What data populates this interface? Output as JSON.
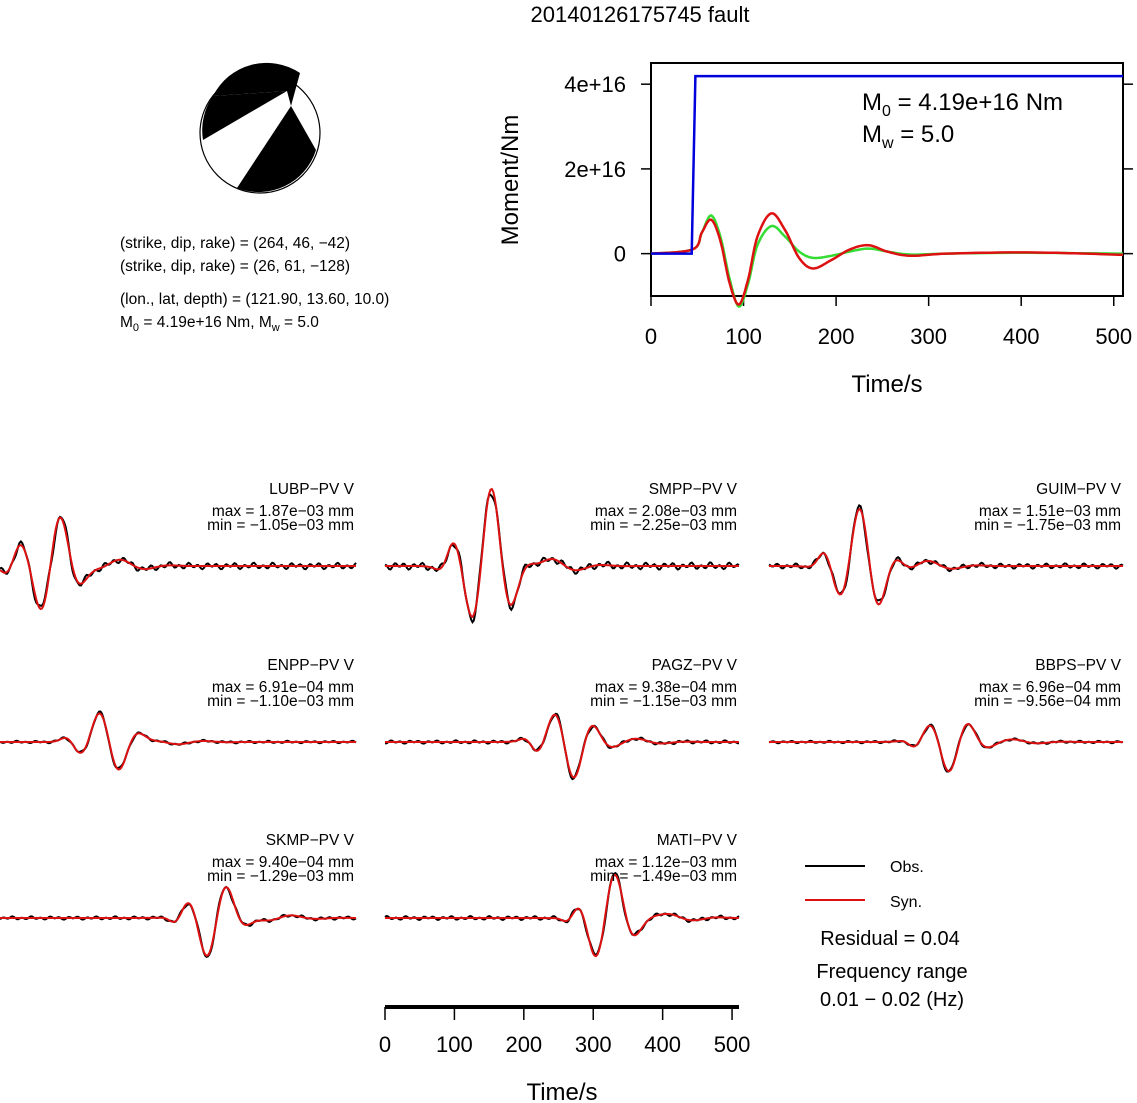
{
  "title": "20140126175745 fault",
  "mechanism": {
    "strike_dip_rake_1": "(strike, dip, rake) = (264, 46, −42)",
    "strike_dip_rake_2": "(strike, dip, rake) = (26, 61, −128)",
    "location": "(lon., lat, depth) = (121.90, 13.60, 10.0)",
    "m0_prefix": "M",
    "m0_sub": "0",
    "m0_mid": " = 4.19e+16 Nm, M",
    "mw_sub": "w",
    "mw_suffix": " = 5.0"
  },
  "moment_plot": {
    "ylabel": "Moment/Nm",
    "xlabel": "Time/s",
    "annotation_m0_prefix": "M",
    "annotation_m0_sub": "0",
    "annotation_m0_value": " = 4.19e+16 Nm",
    "annotation_mw_prefix": "M",
    "annotation_mw_sub": "w",
    "annotation_mw_value": " = 5.0",
    "colors": {
      "cumulative": "#0000dd",
      "rate_red": "#dd1111",
      "rate_green": "#33dd33"
    }
  },
  "chart_data": [
    {
      "type": "line",
      "xlabel": "Time/s",
      "ylabel": "Moment/Nm",
      "xlim": [
        0,
        510
      ],
      "ylim": [
        -1e+16,
        4.5e+16
      ],
      "x_ticks": [
        "0",
        "100",
        "200",
        "300",
        "400",
        "500"
      ],
      "y_ticks": [
        "0",
        "2e+16",
        "4e+16"
      ],
      "series": [
        {
          "values": [
            [
              0,
              0
            ],
            [
              44,
              0
            ],
            [
              48,
              4.19e+16
            ],
            [
              510,
              4.19e+16
            ]
          ]
        },
        {
          "values": [
            [
              0,
              0
            ],
            [
              45,
              1000000000000000.0
            ],
            [
              55,
              5000000000000000.0
            ],
            [
              65,
              8000000000000000.0
            ],
            [
              75,
              3000000000000000.0
            ],
            [
              85,
              -7000000000000000.0
            ],
            [
              95,
              -1.2e+16
            ],
            [
              105,
              -6000000000000000.0
            ],
            [
              115,
              4000000000000000.0
            ],
            [
              130,
              9500000000000000.0
            ],
            [
              145,
              5500000000000000.0
            ],
            [
              160,
              -1000000000000000.0
            ],
            [
              175,
              -3500000000000000.0
            ],
            [
              195,
              -1500000000000000.0
            ],
            [
              215,
              1000000000000000.0
            ],
            [
              235,
              2000000000000000.0
            ],
            [
              255,
              500000000000000.0
            ],
            [
              280,
              -500000000000000.0
            ],
            [
              320,
              0
            ],
            [
              400,
              300000000000000.0
            ],
            [
              470,
              0
            ],
            [
              510,
              -300000000000000.0
            ]
          ]
        },
        {
          "values": [
            [
              0,
              0
            ],
            [
              45,
              1000000000000000.0
            ],
            [
              55,
              5000000000000000.0
            ],
            [
              65,
              9000000000000000.0
            ],
            [
              75,
              4000000000000000.0
            ],
            [
              85,
              -6000000000000000.0
            ],
            [
              95,
              -1.25e+16
            ],
            [
              105,
              -7000000000000000.0
            ],
            [
              115,
              2000000000000000.0
            ],
            [
              130,
              6500000000000000.0
            ],
            [
              145,
              4000000000000000.0
            ],
            [
              160,
              500000000000000.0
            ],
            [
              175,
              -1000000000000000.0
            ],
            [
              195,
              -500000000000000.0
            ],
            [
              215,
              500000000000000.0
            ],
            [
              235,
              1200000000000000.0
            ],
            [
              255,
              500000000000000.0
            ],
            [
              280,
              -200000000000000.0
            ],
            [
              320,
              0
            ],
            [
              400,
              200000000000000.0
            ],
            [
              510,
              0
            ]
          ]
        }
      ]
    },
    {
      "type": "line",
      "panels": [
        {
          "station": "LUBP−PV V",
          "max": "max = 1.87e−03 mm",
          "min": "min = −1.05e−03 mm",
          "ampl_max": 0.00187,
          "ampl_min": -0.00105,
          "center": 75
        },
        {
          "station": "SMPP−PV V",
          "max": "max = 2.08e−03 mm",
          "min": "min = −2.25e−03 mm",
          "ampl_max": 0.00208,
          "ampl_min": -0.00225,
          "center": 150
        },
        {
          "station": "GUIM−PV V",
          "max": "max = 1.51e−03 mm",
          "min": "min = −1.75e−03 mm",
          "ampl_max": 0.00151,
          "ampl_min": -0.00175,
          "center": 135
        },
        {
          "station": "ENPP−PV V",
          "max": "max = 6.91e−04 mm",
          "min": "min = −1.10e−03 mm",
          "ampl_max": 0.000691,
          "ampl_min": -0.0011,
          "center": 155
        },
        {
          "station": "PAGZ−PV V",
          "max": "max = 9.38e−04 mm",
          "min": "min = −1.15e−03 mm",
          "ampl_max": 0.000938,
          "ampl_min": -0.00115,
          "center": 265
        },
        {
          "station": "BBPS−PV V",
          "max": "max = 6.96e−04 mm",
          "min": "min = −9.56e−04 mm",
          "ampl_max": 0.000696,
          "ampl_min": -0.000956,
          "center": 260
        },
        {
          "station": "SKMP−PV V",
          "max": "max = 9.40e−04 mm",
          "min": "min = −1.29e−03 mm",
          "ampl_max": 0.00094,
          "ampl_min": -0.00129,
          "center": 305
        },
        {
          "station": "MATI−PV V",
          "max": "max = 1.12e−03 mm",
          "min": "min = −1.49e−03 mm",
          "ampl_max": 0.00112,
          "ampl_min": -0.00149,
          "center": 320
        }
      ],
      "xlabel": "Time/s",
      "xlim": [
        0,
        510
      ],
      "x_ticks": [
        "0",
        "100",
        "200",
        "300",
        "400",
        "500"
      ]
    }
  ],
  "legend": {
    "obs": "Obs.",
    "syn": "Syn.",
    "obs_color": "#000000",
    "syn_color": "#dd1111"
  },
  "residual": "Residual = 0.04",
  "freq_label": "Frequency range",
  "freq_value": "0.01 − 0.02 (Hz)"
}
